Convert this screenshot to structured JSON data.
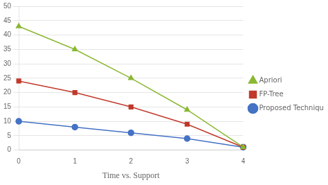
{
  "chart_data": {
    "type": "line",
    "x": [
      0,
      1,
      2,
      3,
      4
    ],
    "xlabel": "Time vs. Support",
    "xlim": [
      0,
      4
    ],
    "xticks": [
      0,
      1,
      2,
      3,
      4
    ],
    "ylim": [
      0,
      50
    ],
    "yticks": [
      0,
      5,
      10,
      15,
      20,
      25,
      30,
      35,
      40,
      45,
      50
    ],
    "grid": "y",
    "legend": "right",
    "series": [
      {
        "name": "Apriori",
        "color": "#8ab832",
        "marker": "triangle",
        "values": [
          43,
          35,
          25,
          14,
          1
        ]
      },
      {
        "name": "FP-Tree",
        "color": "#c0392b",
        "marker": "square",
        "values": [
          24,
          20,
          15,
          9,
          1
        ]
      },
      {
        "name": "Proposed Technique",
        "color": "#4472c4",
        "marker": "circle",
        "values": [
          10,
          8,
          6,
          4,
          1
        ]
      }
    ]
  }
}
